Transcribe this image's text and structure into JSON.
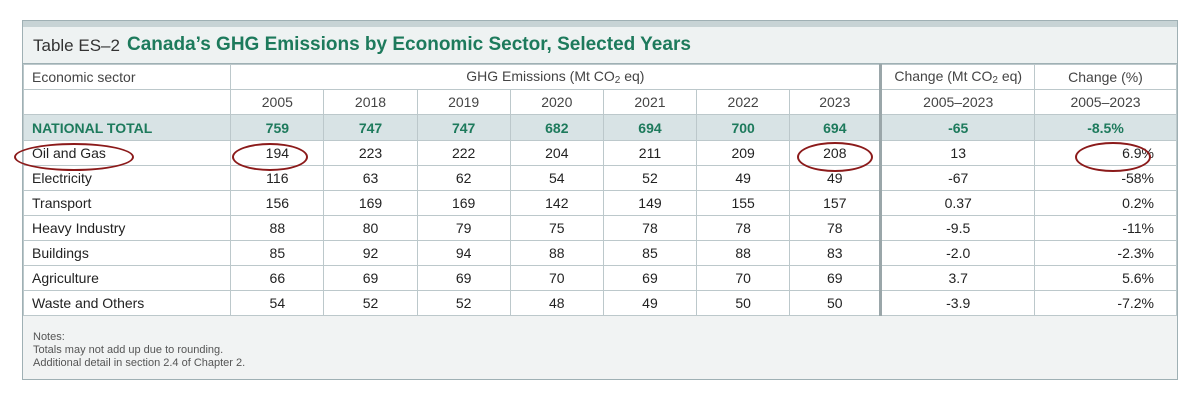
{
  "table": {
    "label": "Table ES–2",
    "title": "Canada’s GHG Emissions by Economic Sector, Selected Years",
    "header": {
      "sector": "Economic sector",
      "emissions_prefix": "GHG Emissions (Mt CO",
      "emissions_sub": "2",
      "emissions_suffix": " eq)",
      "change_mt_prefix": "Change (Mt CO",
      "change_mt_sub": "2",
      "change_mt_suffix": " eq)",
      "change_pct": "Change (%)",
      "years": [
        "2005",
        "2018",
        "2019",
        "2020",
        "2021",
        "2022",
        "2023"
      ],
      "change_period_1": "2005–2023",
      "change_period_2": "2005–2023"
    },
    "total": {
      "label": "NATIONAL TOTAL",
      "values": [
        "759",
        "747",
        "747",
        "682",
        "694",
        "700",
        "694"
      ],
      "change_mt": "-65",
      "change_pct": "-8.5%"
    },
    "rows": [
      {
        "label": "Oil and Gas",
        "values": [
          "194",
          "223",
          "222",
          "204",
          "211",
          "209",
          "208"
        ],
        "change_mt": "13",
        "change_pct": "6.9%"
      },
      {
        "label": "Electricity",
        "values": [
          "116",
          "63",
          "62",
          "54",
          "52",
          "49",
          "49"
        ],
        "change_mt": "-67",
        "change_pct": "-58%"
      },
      {
        "label": "Transport",
        "values": [
          "156",
          "169",
          "169",
          "142",
          "149",
          "155",
          "157"
        ],
        "change_mt": "0.37",
        "change_pct": "0.2%"
      },
      {
        "label": "Heavy Industry",
        "values": [
          "88",
          "80",
          "79",
          "75",
          "78",
          "78",
          "78"
        ],
        "change_mt": "-9.5",
        "change_pct": "-11%"
      },
      {
        "label": "Buildings",
        "values": [
          "85",
          "92",
          "94",
          "88",
          "85",
          "88",
          "83"
        ],
        "change_mt": "-2.0",
        "change_pct": "-2.3%"
      },
      {
        "label": "Agriculture",
        "values": [
          "66",
          "69",
          "69",
          "70",
          "69",
          "70",
          "69"
        ],
        "change_mt": "3.7",
        "change_pct": "5.6%"
      },
      {
        "label": "Waste and Others",
        "values": [
          "54",
          "52",
          "52",
          "48",
          "49",
          "50",
          "50"
        ],
        "change_mt": "-3.9",
        "change_pct": "-7.2%"
      }
    ]
  },
  "notes": {
    "heading": "Notes:",
    "line1": "Totals may not add up due to rounding.",
    "line2": "Additional detail in section 2.4 of Chapter 2."
  },
  "highlight_color": "#8b1a1a"
}
